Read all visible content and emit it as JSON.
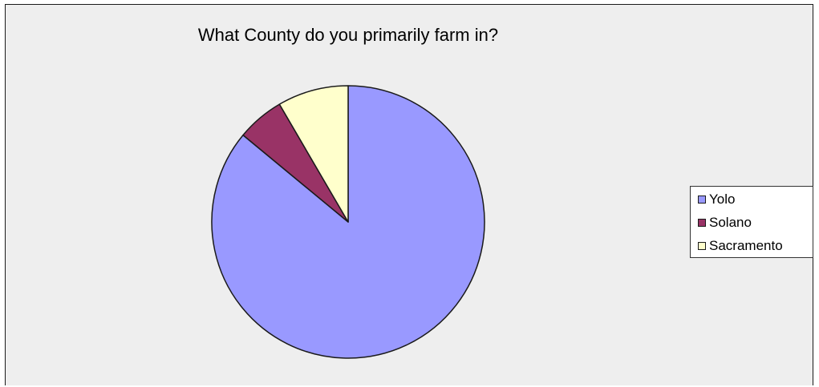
{
  "chart_data": {
    "type": "pie",
    "title": "What County do you primarily farm in?",
    "categories": [
      "Yolo",
      "Solano",
      "Sacramento"
    ],
    "values": [
      86,
      5.6,
      8.4
    ],
    "unit": "percent",
    "start_angle_deg": 0,
    "direction": "clockwise",
    "colors": [
      "#9999ff",
      "#993366",
      "#ffffcc"
    ],
    "legend": {
      "placement": "right",
      "entries": [
        "Yolo",
        "Solano",
        "Sacramento"
      ]
    }
  }
}
